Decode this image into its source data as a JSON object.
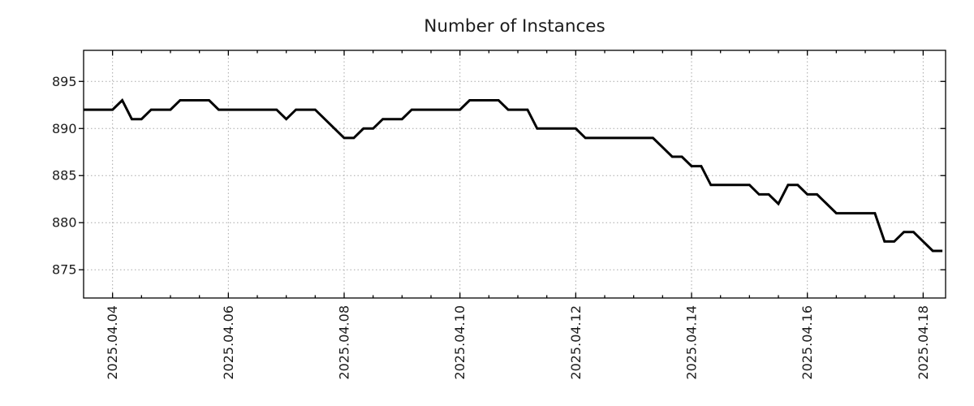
{
  "colors": {
    "line": "#000000",
    "grid": "#a8a8a8",
    "axis": "#000000",
    "text": "#1c1c1c"
  },
  "chart_data": {
    "type": "line",
    "title": "Number of Instances",
    "x_start": "2025-04-03 12:00",
    "x_interval_hours": 4,
    "series": [
      {
        "name": "instances",
        "color": "#000000",
        "values": [
          892,
          892,
          892,
          892,
          893,
          891,
          891,
          892,
          892,
          892,
          893,
          893,
          893,
          893,
          892,
          892,
          892,
          892,
          892,
          892,
          892,
          891,
          892,
          892,
          892,
          891,
          890,
          889,
          889,
          890,
          890,
          891,
          891,
          891,
          892,
          892,
          892,
          892,
          892,
          892,
          893,
          893,
          893,
          893,
          892,
          892,
          892,
          890,
          890,
          890,
          890,
          890,
          889,
          889,
          889,
          889,
          889,
          889,
          889,
          889,
          888,
          887,
          887,
          886,
          886,
          884,
          884,
          884,
          884,
          884,
          883,
          883,
          882,
          884,
          884,
          883,
          883,
          882,
          881,
          881,
          881,
          881,
          881,
          878,
          878,
          879,
          879,
          878,
          877,
          877
        ]
      }
    ],
    "x_ticks": [
      {
        "hour": 12,
        "label": "2025.04.04"
      },
      {
        "hour": 60,
        "label": "2025.04.06"
      },
      {
        "hour": 108,
        "label": "2025.04.08"
      },
      {
        "hour": 156,
        "label": "2025.04.10"
      },
      {
        "hour": 204,
        "label": "2025.04.12"
      },
      {
        "hour": 252,
        "label": "2025.04.14"
      },
      {
        "hour": 300,
        "label": "2025.04.16"
      },
      {
        "hour": 348,
        "label": "2025.04.18"
      }
    ],
    "x_minor_tick_hours": 12,
    "xlim_hours": [
      0,
      357.3
    ],
    "y_ticks": [
      895,
      890,
      885,
      880,
      875
    ],
    "ylim": [
      872,
      898.3
    ],
    "grid": true,
    "legend": false,
    "line_width": 3
  }
}
